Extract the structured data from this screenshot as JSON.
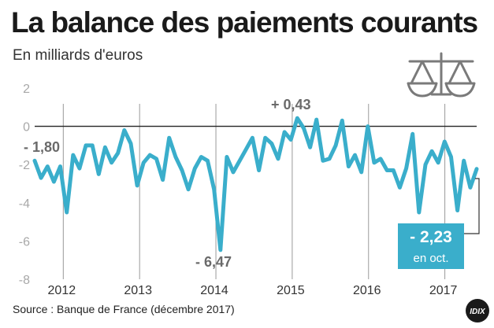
{
  "header": {
    "title": "La balance des paiements courants",
    "subtitle": "En milliards d'euros",
    "scale_icon": "balance-scale-icon"
  },
  "footer": {
    "source": "Source : Banque de France (décembre 2017)",
    "logo_text": "IDIX"
  },
  "colors": {
    "line": "#3aaecb",
    "callout_bg": "#3aaecb",
    "zero_line": "#222222",
    "text_gray": "#a8a8a8"
  },
  "chart_data": {
    "type": "line",
    "title": "",
    "xlabel": "",
    "ylabel": "",
    "ylim": [
      -8,
      2
    ],
    "xlim": [
      2011.625,
      2017.417
    ],
    "y_ticks": [
      2,
      0,
      -2,
      -4,
      -6,
      -8
    ],
    "y_tick_labels": [
      "2",
      "0",
      "-2",
      "-4",
      "-6",
      "-8"
    ],
    "x_tick_labels": [
      "2012",
      "2013",
      "2014",
      "2015",
      "2016",
      "2017"
    ],
    "year_separators": [
      2012,
      2013,
      2014,
      2015,
      2016,
      2017
    ],
    "x_label_positions": [
      2012.0,
      2013.0,
      2014.0,
      2015.0,
      2016.0,
      2017.0
    ],
    "series": [
      {
        "values": [
          -1.8,
          -2.7,
          -2.1,
          -2.9,
          -2.1,
          -4.5,
          -1.5,
          -2.2,
          -1.0,
          -1.0,
          -2.5,
          -1.1,
          -1.9,
          -1.4,
          -0.2,
          -0.9,
          -3.1,
          -1.9,
          -1.5,
          -1.7,
          -2.8,
          -0.6,
          -1.6,
          -2.3,
          -3.3,
          -2.2,
          -1.6,
          -1.8,
          -3.3,
          -6.47,
          -1.6,
          -2.4,
          -1.8,
          -1.2,
          -0.6,
          -2.3,
          -0.6,
          -0.9,
          -1.7,
          -0.3,
          -0.7,
          0.43,
          -0.1,
          -1.1,
          0.35,
          -1.8,
          -1.7,
          -1.0,
          0.3,
          -2.1,
          -1.5,
          -2.4,
          0.0,
          -1.9,
          -1.7,
          -2.3,
          -2.3,
          -3.2,
          -2.2,
          -0.4,
          -4.5,
          -2.0,
          -1.3,
          -1.9,
          -0.8,
          -1.6,
          -4.4,
          -1.8,
          -3.2,
          -2.23
        ]
      }
    ],
    "annotations": [
      {
        "label": "- 1,80",
        "value": -1.8
      },
      {
        "label": "+ 0,43",
        "value": 0.43
      },
      {
        "label": "- 6,47",
        "value": -6.47
      }
    ],
    "callout": {
      "value_label": "- 2,23",
      "sub_label": "en oct.",
      "value": -2.23
    }
  }
}
